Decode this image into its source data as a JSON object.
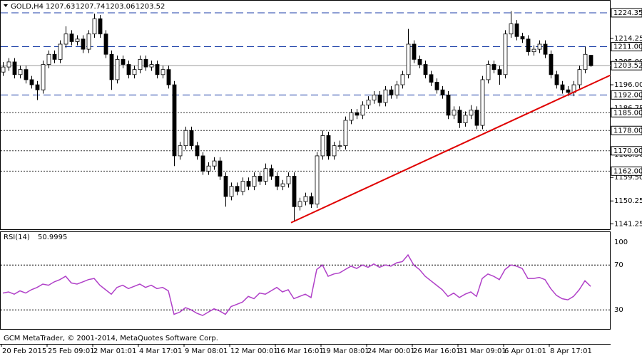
{
  "chart_data": {
    "type": "candlestick",
    "symbol": "GOLD,H4",
    "candles": [
      [
        1201,
        1205,
        1199.5,
        1203
      ],
      [
        1203,
        1206.5,
        1201.5,
        1205
      ],
      [
        1205,
        1206.5,
        1198.5,
        1200
      ],
      [
        1200,
        1203.5,
        1198.5,
        1202
      ],
      [
        1202,
        1203.5,
        1196.5,
        1198
      ],
      [
        1198,
        1199.5,
        1194.5,
        1196
      ],
      [
        1196,
        1197.5,
        1190,
        1194
      ],
      [
        1194,
        1205.5,
        1192.5,
        1204
      ],
      [
        1204,
        1209.5,
        1202.5,
        1208
      ],
      [
        1208,
        1209.5,
        1204.5,
        1206
      ],
      [
        1206,
        1213.5,
        1204.5,
        1212
      ],
      [
        1212,
        1219,
        1210.5,
        1216
      ],
      [
        1216,
        1217.5,
        1211.5,
        1213
      ],
      [
        1213,
        1215.5,
        1211.5,
        1214
      ],
      [
        1214,
        1215.5,
        1208.5,
        1210
      ],
      [
        1210,
        1217.5,
        1208.5,
        1216
      ],
      [
        1216,
        1224,
        1214.5,
        1222
      ],
      [
        1222,
        1223.5,
        1214.5,
        1216
      ],
      [
        1216,
        1217.5,
        1206.5,
        1208
      ],
      [
        1208,
        1209.5,
        1194,
        1198
      ],
      [
        1198,
        1207.5,
        1196.5,
        1206
      ],
      [
        1206,
        1207.5,
        1202.5,
        1204
      ],
      [
        1204,
        1205.5,
        1198.5,
        1200
      ],
      [
        1200,
        1203.5,
        1198.5,
        1202
      ],
      [
        1202,
        1207.5,
        1200.5,
        1206
      ],
      [
        1206,
        1207.5,
        1201.5,
        1203
      ],
      [
        1203,
        1205.5,
        1201.5,
        1204
      ],
      [
        1204,
        1205.5,
        1198.5,
        1200
      ],
      [
        1200,
        1203.5,
        1198.5,
        1202
      ],
      [
        1202,
        1203.5,
        1194.5,
        1196
      ],
      [
        1196,
        1197.5,
        1164,
        1168
      ],
      [
        1168,
        1173.5,
        1166.5,
        1172
      ],
      [
        1172,
        1179.5,
        1170.5,
        1178
      ],
      [
        1178,
        1179.5,
        1170.5,
        1172
      ],
      [
        1172,
        1173.5,
        1166.5,
        1168
      ],
      [
        1168,
        1169.5,
        1160.5,
        1162
      ],
      [
        1162,
        1165.5,
        1160.5,
        1164
      ],
      [
        1164,
        1167.5,
        1162.5,
        1166
      ],
      [
        1166,
        1167.5,
        1158.5,
        1160
      ],
      [
        1160,
        1161.5,
        1148,
        1152
      ],
      [
        1152,
        1157.5,
        1150.5,
        1156
      ],
      [
        1156,
        1157.5,
        1152.5,
        1154
      ],
      [
        1154,
        1159.5,
        1152.5,
        1158
      ],
      [
        1158,
        1159.5,
        1154.5,
        1156
      ],
      [
        1156,
        1161.5,
        1154.5,
        1160
      ],
      [
        1160,
        1161.5,
        1156.5,
        1158
      ],
      [
        1158,
        1165,
        1156.5,
        1163
      ],
      [
        1163,
        1164.5,
        1158.5,
        1160
      ],
      [
        1160,
        1161.5,
        1154.5,
        1156
      ],
      [
        1156,
        1158.5,
        1154.5,
        1157
      ],
      [
        1157,
        1161.5,
        1155.5,
        1160
      ],
      [
        1160,
        1161.5,
        1142,
        1148
      ],
      [
        1148,
        1151.5,
        1146.5,
        1150
      ],
      [
        1150,
        1153.5,
        1148.5,
        1152
      ],
      [
        1152,
        1153.5,
        1147.5,
        1149
      ],
      [
        1149,
        1169.5,
        1147.5,
        1168
      ],
      [
        1168,
        1178,
        1166.5,
        1176
      ],
      [
        1176,
        1177.5,
        1166.5,
        1168
      ],
      [
        1168,
        1173.5,
        1166.5,
        1172
      ],
      [
        1172,
        1174,
        1170.5,
        1172
      ],
      [
        1172,
        1183.5,
        1170.5,
        1182
      ],
      [
        1182,
        1186.5,
        1180.5,
        1185
      ],
      [
        1185,
        1186.5,
        1182.5,
        1184
      ],
      [
        1184,
        1189.5,
        1182.5,
        1188
      ],
      [
        1188,
        1191.5,
        1186.5,
        1190
      ],
      [
        1190,
        1193.5,
        1188.5,
        1192
      ],
      [
        1192,
        1193.5,
        1187.5,
        1189
      ],
      [
        1189,
        1195.5,
        1187.5,
        1194
      ],
      [
        1194,
        1195.5,
        1190.5,
        1192
      ],
      [
        1192,
        1197.5,
        1190.5,
        1196
      ],
      [
        1196,
        1201.5,
        1194.5,
        1200
      ],
      [
        1200,
        1218,
        1198.5,
        1212
      ],
      [
        1212,
        1213.5,
        1204.5,
        1206
      ],
      [
        1206,
        1207.5,
        1202.5,
        1204
      ],
      [
        1204,
        1205.5,
        1198.5,
        1200
      ],
      [
        1200,
        1201.5,
        1195.5,
        1197
      ],
      [
        1197,
        1198.5,
        1192.5,
        1194
      ],
      [
        1194,
        1195.5,
        1190.5,
        1192
      ],
      [
        1192,
        1193.5,
        1182.5,
        1184
      ],
      [
        1184,
        1187.5,
        1182.5,
        1186
      ],
      [
        1186,
        1187.5,
        1179,
        1181
      ],
      [
        1181,
        1185.5,
        1179.5,
        1184
      ],
      [
        1184,
        1188,
        1182.5,
        1186
      ],
      [
        1186,
        1187.5,
        1178.5,
        1180
      ],
      [
        1180,
        1199.5,
        1178.5,
        1198
      ],
      [
        1198,
        1205.5,
        1196.5,
        1204
      ],
      [
        1204,
        1205.5,
        1200.5,
        1202
      ],
      [
        1202,
        1203.5,
        1196,
        1200
      ],
      [
        1200,
        1217.5,
        1198.5,
        1216
      ],
      [
        1216,
        1225,
        1214.5,
        1220
      ],
      [
        1220,
        1221.5,
        1213.5,
        1215
      ],
      [
        1215,
        1216.5,
        1212.5,
        1214
      ],
      [
        1214,
        1215.5,
        1207.5,
        1209
      ],
      [
        1209,
        1211.5,
        1207.5,
        1210
      ],
      [
        1210,
        1213.5,
        1208.5,
        1212
      ],
      [
        1212,
        1213.5,
        1206.5,
        1208
      ],
      [
        1208,
        1209.5,
        1198.5,
        1200
      ],
      [
        1200,
        1201.5,
        1194.5,
        1196
      ],
      [
        1196,
        1197.5,
        1192.5,
        1194
      ],
      [
        1194,
        1195.5,
        1191.5,
        1193
      ],
      [
        1193,
        1197.5,
        1191.5,
        1196
      ],
      [
        1196,
        1203.5,
        1194.5,
        1202
      ],
      [
        1202,
        1211,
        1200.5,
        1208
      ],
      [
        1207.63,
        1207.74,
        1203.06,
        1203.52
      ]
    ],
    "ylim": [
      1139.1,
      1229.1
    ],
    "yticks": [
      1214.25,
      {
        "value": 1205.0,
        "label": "1205.00"
      },
      {
        "value": 1196.0,
        "label": "1196.00"
      },
      1186.75,
      {
        "value": 1168.5,
        "label": "1168.50"
      },
      {
        "value": 1159.5,
        "label": "1159.50"
      },
      1150.25,
      1141.25
    ],
    "levels": [
      {
        "value": 1224.35,
        "label": "1224.35",
        "style": "dash",
        "color": "#1c3fa8"
      },
      {
        "value": 1211.0,
        "label": "1211.00",
        "style": "dash",
        "color": "#1c3fa8"
      },
      {
        "value": 1192.0,
        "label": "1192.00",
        "style": "dash",
        "color": "#1c3fa8"
      },
      {
        "value": 1185.0,
        "label": "1185.00",
        "style": "dot",
        "color": "#333333"
      },
      {
        "value": 1178.0,
        "label": "1178.00",
        "style": "dot",
        "color": "#333333"
      },
      {
        "value": 1170.0,
        "label": "1170.00",
        "style": "dot",
        "color": "#333333"
      },
      {
        "value": 1162.0,
        "label": "1162.00",
        "style": "dot",
        "color": "#333333"
      }
    ],
    "trendline": {
      "x": [
        50.5,
        106.4
      ],
      "y": [
        1141.7,
        1199.7
      ],
      "color": "#e00000"
    },
    "x_labels": [
      "20 Feb 2015",
      "25 Feb 09:01",
      "2 Mar 01:01",
      "4 Mar 17:01",
      "9 Mar 08:01",
      "12 Mar 00:01",
      "16 Mar 16:01",
      "19 Mar 08:01",
      "24 Mar 00:01",
      "26 Mar 16:01",
      "31 Mar 09:01",
      "6 Apr 01:01",
      "8 Apr 17:01"
    ],
    "indicator": {
      "name": "RSI(14)",
      "color": "#b040c8",
      "values": [
        45,
        46,
        44,
        47,
        45,
        48,
        50,
        53,
        52,
        55,
        57,
        60,
        54,
        53,
        55,
        57,
        58,
        52,
        48,
        44,
        50,
        52,
        49,
        51,
        53,
        50,
        52,
        49,
        50,
        47,
        26,
        28,
        32,
        30,
        27,
        25,
        28,
        31,
        29,
        26,
        33,
        35,
        37,
        42,
        40,
        45,
        44,
        47,
        50,
        46,
        48,
        40,
        42,
        44,
        41,
        66,
        70,
        60,
        62,
        63,
        66,
        69,
        67,
        70,
        68,
        71,
        68,
        70,
        69,
        72,
        73,
        79,
        70,
        66,
        60,
        56,
        52,
        48,
        42,
        45,
        41,
        44,
        46,
        42,
        58,
        62,
        60,
        57,
        66,
        70,
        69,
        67,
        58,
        58,
        59,
        57,
        49,
        43,
        40,
        39,
        42,
        48,
        56,
        50.9995
      ],
      "ylim": [
        13,
        100
      ],
      "yticks": [
        100,
        70,
        30
      ]
    },
    "copyright": "GCM MetaTrader, © 2001-2014, MetaQuotes Software Corp."
  }
}
